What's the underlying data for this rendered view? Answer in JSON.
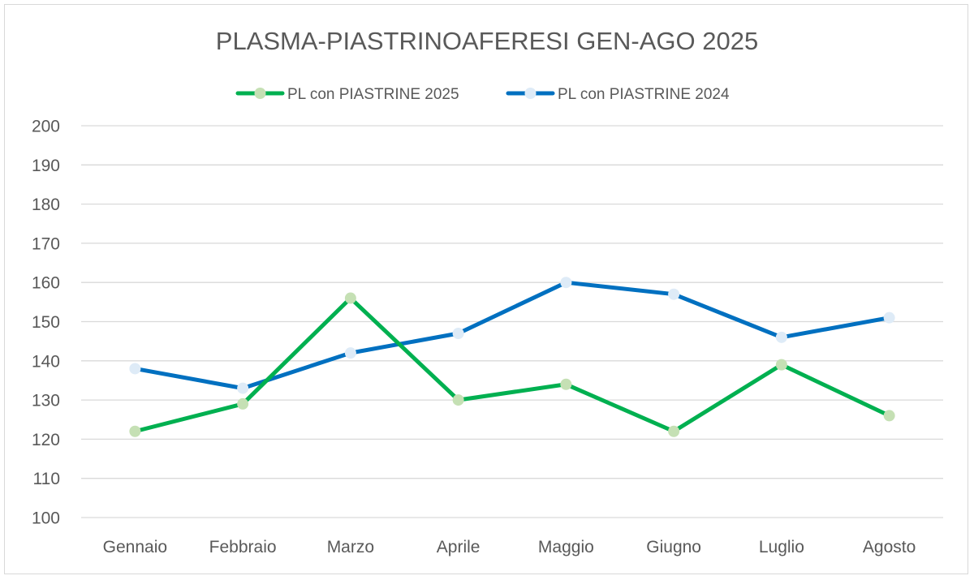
{
  "chart_data": {
    "type": "line",
    "title": "PLASMA-PIASTRINOAFERESI GEN-AGO 2025",
    "xlabel": "",
    "ylabel": "",
    "categories": [
      "Gennaio",
      "Febbraio",
      "Marzo",
      "Aprile",
      "Maggio",
      "Giugno",
      "Luglio",
      "Agosto"
    ],
    "ylim": [
      100,
      200
    ],
    "yticks": [
      "100",
      "110",
      "120",
      "130",
      "140",
      "150",
      "160",
      "170",
      "180",
      "190",
      "200"
    ],
    "grid": true,
    "legend_position": "top",
    "series": [
      {
        "name": "PL con PIASTRINE 2025",
        "values": [
          122,
          129,
          156,
          130,
          134,
          122,
          139,
          126
        ],
        "line_color": "#00b050",
        "marker_color": "#c5e0b4"
      },
      {
        "name": "PL con PIASTRINE 2024",
        "values": [
          138,
          133,
          142,
          147,
          160,
          157,
          146,
          151
        ],
        "line_color": "#0070c0",
        "marker_color": "#deebf7"
      }
    ]
  }
}
